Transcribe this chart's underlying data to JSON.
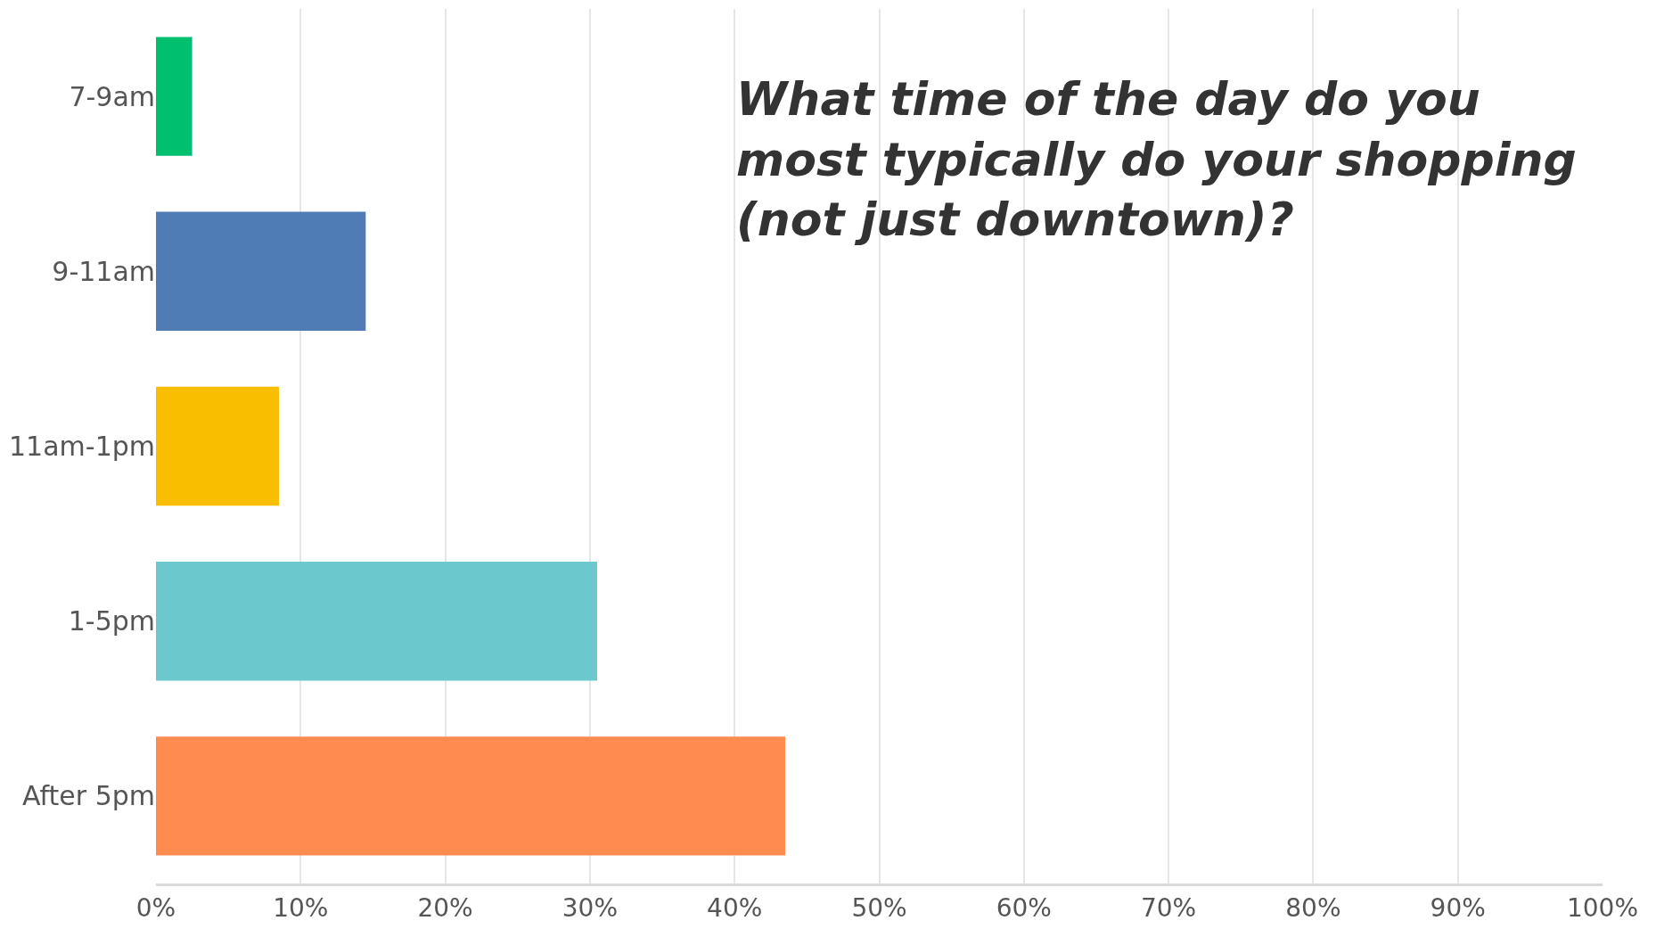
{
  "chart_data": {
    "type": "bar",
    "orientation": "horizontal",
    "title": "What time of the day do you most typically do your shopping (not just downtown)?",
    "categories": [
      "7-9am",
      "9-11am",
      "11am-1pm",
      "1-5pm",
      "After 5pm"
    ],
    "values": [
      2.5,
      14.5,
      8.5,
      30.5,
      43.5
    ],
    "colors": [
      "#00bf6f",
      "#507cb6",
      "#f9be00",
      "#6bc8cd",
      "#ff8b4f"
    ],
    "xlim": [
      0,
      100
    ],
    "xticks": [
      {
        "value": 0,
        "label": "0%"
      },
      {
        "value": 10,
        "label": "10%"
      },
      {
        "value": 20,
        "label": "20%"
      },
      {
        "value": 30,
        "label": "30%"
      },
      {
        "value": 40,
        "label": "40%"
      },
      {
        "value": 50,
        "label": "50%"
      },
      {
        "value": 60,
        "label": "60%"
      },
      {
        "value": 70,
        "label": "70%"
      },
      {
        "value": 80,
        "label": "80%"
      },
      {
        "value": 90,
        "label": "90%"
      },
      {
        "value": 100,
        "label": "100%"
      }
    ],
    "grid": "x"
  }
}
